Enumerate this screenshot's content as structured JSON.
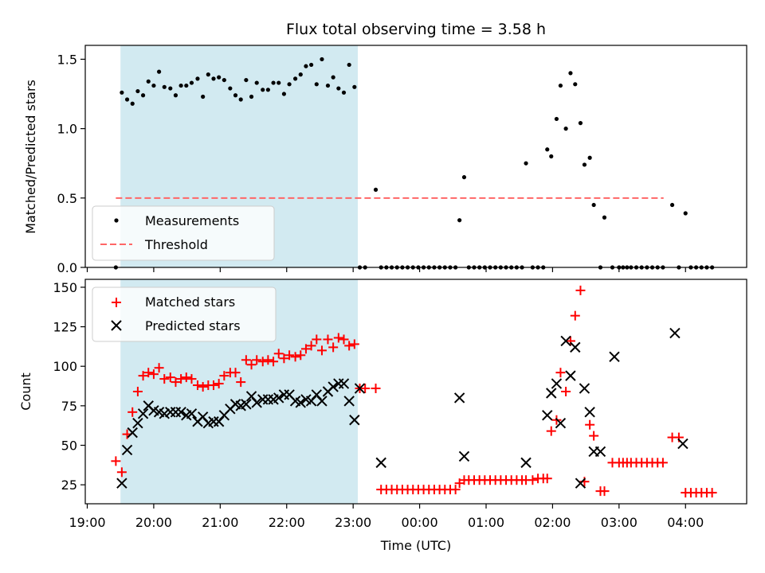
{
  "chart_data": [
    {
      "type": "scatter",
      "title": "Flux total observing time = 3.58 h",
      "xlabel": "",
      "ylabel": "Matched/Predicted stars",
      "ylim": [
        0,
        1.6
      ],
      "yticks": [
        "0.0",
        "0.5",
        "1.0",
        "1.5"
      ],
      "ytick_values": [
        0,
        0.5,
        1.0,
        1.5
      ],
      "legend_position": "lower-left",
      "shaded_span": {
        "x0": 19.5,
        "x1": 23.07,
        "color": "#add8e6"
      },
      "threshold": {
        "name": "Threshold",
        "y": 0.5,
        "x0": 19.43,
        "x1": 27.67,
        "color": "#ff6666"
      },
      "series": [
        {
          "name": "Measurements",
          "color": "#000000",
          "marker": "dot",
          "x": [
            19.43,
            19.52,
            19.6,
            19.68,
            19.76,
            19.84,
            19.92,
            20.0,
            20.08,
            20.16,
            20.25,
            20.33,
            20.41,
            20.49,
            20.57,
            20.66,
            20.74,
            20.82,
            20.9,
            20.98,
            21.06,
            21.15,
            21.23,
            21.31,
            21.39,
            21.47,
            21.55,
            21.64,
            21.72,
            21.8,
            21.88,
            21.96,
            22.04,
            22.13,
            22.21,
            22.29,
            22.37,
            22.45,
            22.53,
            22.62,
            22.7,
            22.78,
            22.86,
            22.94,
            23.02,
            23.1,
            23.18,
            23.34,
            23.42,
            23.5,
            23.58,
            23.66,
            23.74,
            23.82,
            23.9,
            23.98,
            24.06,
            24.14,
            24.22,
            24.3,
            24.38,
            24.46,
            24.54,
            24.6,
            24.67,
            24.74,
            24.82,
            24.9,
            24.98,
            25.06,
            25.14,
            25.22,
            25.3,
            25.38,
            25.46,
            25.54,
            25.6,
            25.7,
            25.78,
            25.86,
            25.92,
            25.98,
            26.06,
            26.12,
            26.2,
            26.27,
            26.34,
            26.42,
            26.48,
            26.56,
            26.62,
            26.72,
            26.78,
            26.9,
            27.0,
            27.06,
            27.12,
            27.18,
            27.26,
            27.34,
            27.42,
            27.5,
            27.58,
            27.66
          ],
          "y": [
            0.0,
            1.26,
            1.21,
            1.18,
            1.27,
            1.24,
            1.34,
            1.31,
            1.41,
            1.3,
            1.29,
            1.24,
            1.31,
            1.31,
            1.33,
            1.36,
            1.23,
            1.39,
            1.36,
            1.37,
            1.35,
            1.29,
            1.24,
            1.21,
            1.35,
            1.23,
            1.33,
            1.28,
            1.28,
            1.33,
            1.33,
            1.25,
            1.32,
            1.36,
            1.39,
            1.45,
            1.46,
            1.32,
            1.5,
            1.31,
            1.37,
            1.29,
            1.26,
            1.46,
            1.3,
            0.0,
            0.0,
            0.56,
            0.0,
            0.0,
            0.0,
            0.0,
            0.0,
            0.0,
            0.0,
            0.0,
            0.0,
            0.0,
            0.0,
            0.0,
            0.0,
            0.0,
            0.0,
            0.34,
            0.65,
            0.0,
            0.0,
            0.0,
            0.0,
            0.0,
            0.0,
            0.0,
            0.0,
            0.0,
            0.0,
            0.0,
            0.75,
            0.0,
            0.0,
            0.0,
            0.85,
            0.8,
            1.07,
            1.31,
            1.0,
            1.4,
            1.32,
            1.04,
            0.74,
            0.79,
            0.45,
            0.0,
            0.36,
            0.0,
            0.0,
            0.0,
            0.0,
            0.0,
            0.0,
            0.0,
            0.0,
            0.0,
            0.0,
            0.0
          ]
        }
      ],
      "extra_points": {
        "x": [
          27.8,
          27.9,
          28.0,
          28.08,
          28.16,
          28.24,
          28.32,
          28.4
        ],
        "y": [
          0.45,
          0.0,
          0.39,
          0.0,
          0.0,
          0.0,
          0.0,
          0.0
        ]
      }
    },
    {
      "type": "scatter",
      "title": "",
      "xlabel": "Time (UTC)",
      "ylabel": "Count",
      "ylim": [
        13,
        155
      ],
      "yticks": [
        "25",
        "50",
        "75",
        "100",
        "125",
        "150"
      ],
      "ytick_values": [
        25,
        50,
        75,
        100,
        125,
        150
      ],
      "xlim": [
        18.97,
        28.92
      ],
      "xticks": [
        "19:00",
        "20:00",
        "21:00",
        "22:00",
        "23:00",
        "00:00",
        "01:00",
        "02:00",
        "03:00",
        "04:00"
      ],
      "xtick_values": [
        19,
        20,
        21,
        22,
        23,
        24,
        25,
        26,
        27,
        28
      ],
      "legend_position": "upper-left",
      "shaded_span": {
        "x0": 19.5,
        "x1": 23.07,
        "color": "#add8e6"
      },
      "series": [
        {
          "name": "Matched stars",
          "color": "#ff0000",
          "marker": "plus",
          "x": [
            19.43,
            19.52,
            19.6,
            19.68,
            19.76,
            19.84,
            19.92,
            20.0,
            20.08,
            20.16,
            20.25,
            20.33,
            20.41,
            20.49,
            20.57,
            20.66,
            20.74,
            20.82,
            20.9,
            20.98,
            21.06,
            21.15,
            21.23,
            21.31,
            21.39,
            21.47,
            21.55,
            21.64,
            21.72,
            21.8,
            21.88,
            21.96,
            22.04,
            22.13,
            22.21,
            22.29,
            22.37,
            22.45,
            22.53,
            22.62,
            22.7,
            22.78,
            22.86,
            22.94,
            23.02,
            23.1,
            23.18,
            23.34,
            23.42,
            23.5,
            23.58,
            23.66,
            23.74,
            23.82,
            23.9,
            23.98,
            24.06,
            24.14,
            24.22,
            24.3,
            24.38,
            24.46,
            24.54,
            24.6,
            24.67,
            24.74,
            24.82,
            24.9,
            24.98,
            25.06,
            25.14,
            25.22,
            25.3,
            25.38,
            25.46,
            25.54,
            25.6,
            25.7,
            25.78,
            25.86,
            25.92,
            25.98,
            26.06,
            26.12,
            26.2,
            26.27,
            26.34,
            26.42,
            26.48,
            26.56,
            26.62,
            26.72,
            26.78,
            26.9,
            27.0,
            27.06,
            27.12,
            27.18,
            27.26,
            27.34,
            27.42,
            27.5,
            27.58,
            27.66,
            27.8,
            27.9,
            28.0,
            28.08,
            28.16,
            28.24,
            28.32,
            28.4
          ],
          "y": [
            40,
            33,
            57,
            71,
            84,
            94,
            96,
            95,
            99,
            92,
            93,
            90,
            92,
            93,
            92,
            88,
            87,
            88,
            88,
            89,
            94,
            96,
            96,
            90,
            104,
            101,
            104,
            103,
            104,
            103,
            108,
            105,
            107,
            106,
            107,
            111,
            113,
            117,
            110,
            117,
            112,
            118,
            117,
            113,
            114,
            86,
            86,
            86,
            22,
            22,
            22,
            22,
            22,
            22,
            22,
            22,
            22,
            22,
            22,
            22,
            22,
            22,
            22,
            26,
            28,
            28,
            28,
            28,
            28,
            28,
            28,
            28,
            28,
            28,
            28,
            28,
            28,
            28,
            29,
            29,
            29,
            59,
            66,
            96,
            84,
            116,
            132,
            148,
            27,
            63,
            56,
            21,
            21,
            39,
            39,
            39,
            39,
            39,
            39,
            39,
            39,
            39,
            39,
            39,
            55,
            55,
            20,
            20,
            20,
            20,
            20,
            20
          ]
        },
        {
          "name": "Predicted stars",
          "color": "#000000",
          "marker": "x",
          "x": [
            19.52,
            19.6,
            19.68,
            19.76,
            19.84,
            19.92,
            20.0,
            20.08,
            20.16,
            20.25,
            20.33,
            20.41,
            20.49,
            20.57,
            20.66,
            20.74,
            20.82,
            20.9,
            20.98,
            21.06,
            21.15,
            21.23,
            21.31,
            21.39,
            21.47,
            21.55,
            21.64,
            21.72,
            21.8,
            21.88,
            21.96,
            22.04,
            22.13,
            22.21,
            22.29,
            22.37,
            22.45,
            22.53,
            22.62,
            22.7,
            22.78,
            22.86,
            22.94,
            23.02,
            23.1,
            23.42,
            24.6,
            24.67,
            25.6,
            25.92,
            25.98,
            26.06,
            26.12,
            26.2,
            26.27,
            26.34,
            26.42,
            26.48,
            26.56,
            26.62,
            26.72,
            26.93,
            27.84,
            27.96
          ],
          "y": [
            26,
            47,
            58,
            64,
            70,
            75,
            72,
            71,
            70,
            71,
            71,
            71,
            69,
            70,
            65,
            68,
            64,
            65,
            65,
            69,
            73,
            76,
            75,
            76,
            81,
            77,
            79,
            79,
            79,
            80,
            82,
            82,
            78,
            77,
            79,
            78,
            82,
            78,
            84,
            87,
            89,
            89,
            78,
            66,
            86,
            39,
            80,
            43,
            39,
            69,
            83,
            89,
            64,
            116,
            94,
            112,
            26,
            86,
            71,
            46,
            46,
            106,
            121,
            51
          ]
        }
      ]
    }
  ]
}
